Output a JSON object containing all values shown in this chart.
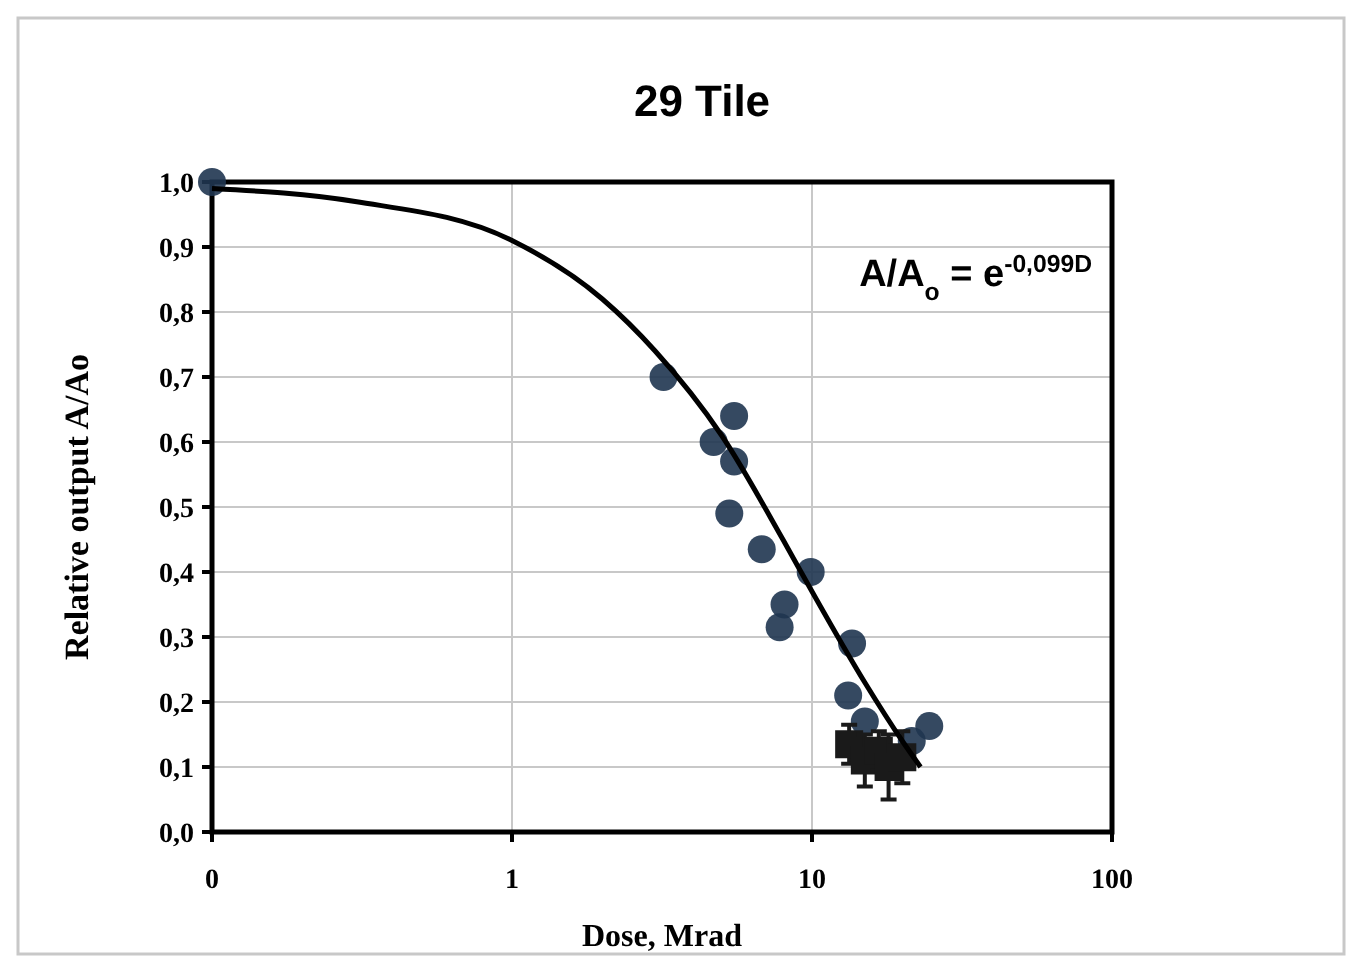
{
  "chart_data": {
    "type": "scatter",
    "title": "29 Tile",
    "xlabel": "Dose,  Mrad",
    "ylabel": "Relative output A/Ao",
    "log": "x",
    "grid": true,
    "xlim": [
      0.1,
      100
    ],
    "xticks": [
      {
        "value": 0.1,
        "label": "0"
      },
      1,
      10,
      100
    ],
    "ylim": [
      0,
      1
    ],
    "yticks": [
      {
        "value": 0,
        "label": "0,0"
      },
      {
        "value": 0.1,
        "label": "0,1"
      },
      {
        "value": 0.2,
        "label": "0,2"
      },
      {
        "value": 0.3,
        "label": "0,3"
      },
      {
        "value": 0.4,
        "label": "0,4"
      },
      {
        "value": 0.5,
        "label": "0,5"
      },
      {
        "value": 0.6,
        "label": "0,6"
      },
      {
        "value": 0.7,
        "label": "0,7"
      },
      {
        "value": 0.8,
        "label": "0,8"
      },
      {
        "value": 0.9,
        "label": "0,9"
      },
      {
        "value": 1,
        "label": "1,0"
      }
    ],
    "annotations": [
      "A/A$_{o}$ = e$^{-0,099D}$"
    ],
    "series": [
      {
        "type": "scatter",
        "marker": "circle",
        "color": "#1f3550",
        "x": [
          0.1,
          3.2,
          4.7,
          5.5,
          5.5,
          5.3,
          6.8,
          8.1,
          7.8,
          9.9,
          13.6,
          13.2,
          15,
          24.6,
          21.5
        ],
        "values": [
          1.0,
          0.7,
          0.6,
          0.64,
          0.57,
          0.49,
          0.435,
          0.35,
          0.315,
          0.4,
          0.29,
          0.21,
          0.17,
          0.163,
          0.14
        ]
      },
      {
        "type": "scatter",
        "marker": "square",
        "color": "#1a1a1a",
        "x": [
          13.3,
          15,
          16.7,
          18,
          20
        ],
        "values": [
          0.135,
          0.11,
          0.125,
          0.1,
          0.115
        ],
        "errors": [
          0.03,
          0.04,
          0.03,
          0.05,
          0.04
        ]
      },
      {
        "type": "line",
        "marker": "none",
        "line_style": "solid",
        "color": "#000000",
        "x": [
          0.1,
          0.3,
          1,
          2,
          3,
          5,
          8,
          10,
          15,
          20,
          23
        ],
        "values": [
          0.99,
          0.97,
          0.91,
          0.82,
          0.74,
          0.61,
          0.45,
          0.37,
          0.23,
          0.14,
          0.1
        ]
      }
    ]
  }
}
